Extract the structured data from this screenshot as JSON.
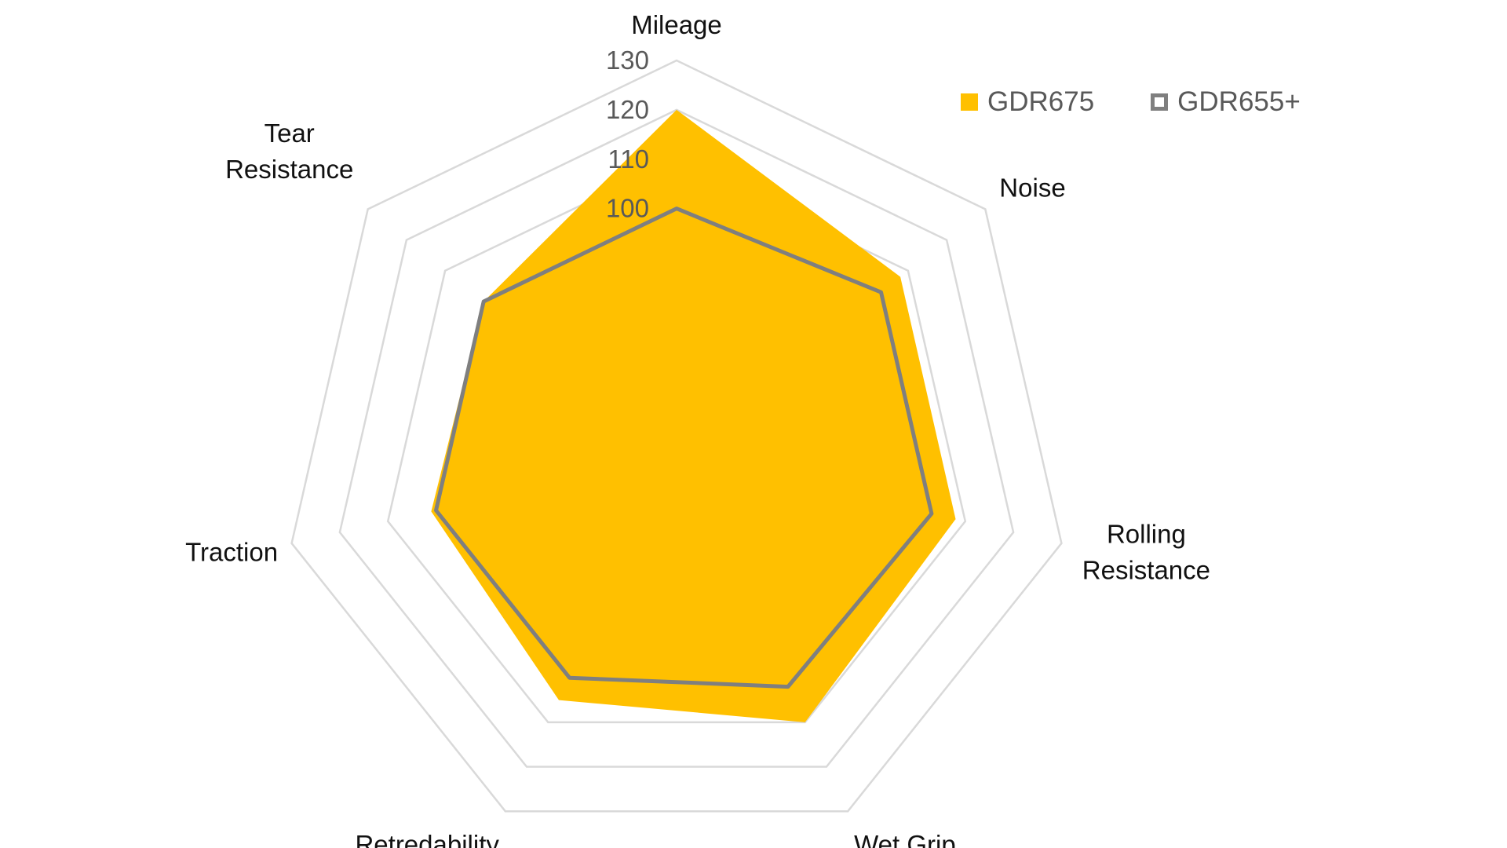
{
  "chart_data": {
    "type": "radar",
    "title": "",
    "categories": [
      "Mileage",
      "Noise",
      "Rolling Resistance",
      "Wet Grip",
      "Retredability",
      "Traction",
      "Tear Resistance"
    ],
    "category_lines": [
      [
        "Mileage"
      ],
      [
        "Noise"
      ],
      [
        "Rolling",
        "Resistance"
      ],
      [
        "Wet Grip"
      ],
      [
        "Retredability"
      ],
      [
        "Traction"
      ],
      [
        "Tear",
        "Resistance"
      ]
    ],
    "radial_ticks": [
      "100",
      "110",
      "120",
      "130"
    ],
    "radial_range": [
      50,
      130
    ],
    "series": [
      {
        "name": "GDR675",
        "style": "filled",
        "color": "#ffc000",
        "values": [
          120,
          108,
          108,
          110,
          105,
          101,
          100
        ]
      },
      {
        "name": "GDR655+",
        "style": "outline",
        "color": "#7f7f7f",
        "values": [
          100,
          103,
          103,
          102,
          100,
          100,
          100
        ]
      }
    ],
    "grid": true,
    "legend_position": "top-right"
  }
}
